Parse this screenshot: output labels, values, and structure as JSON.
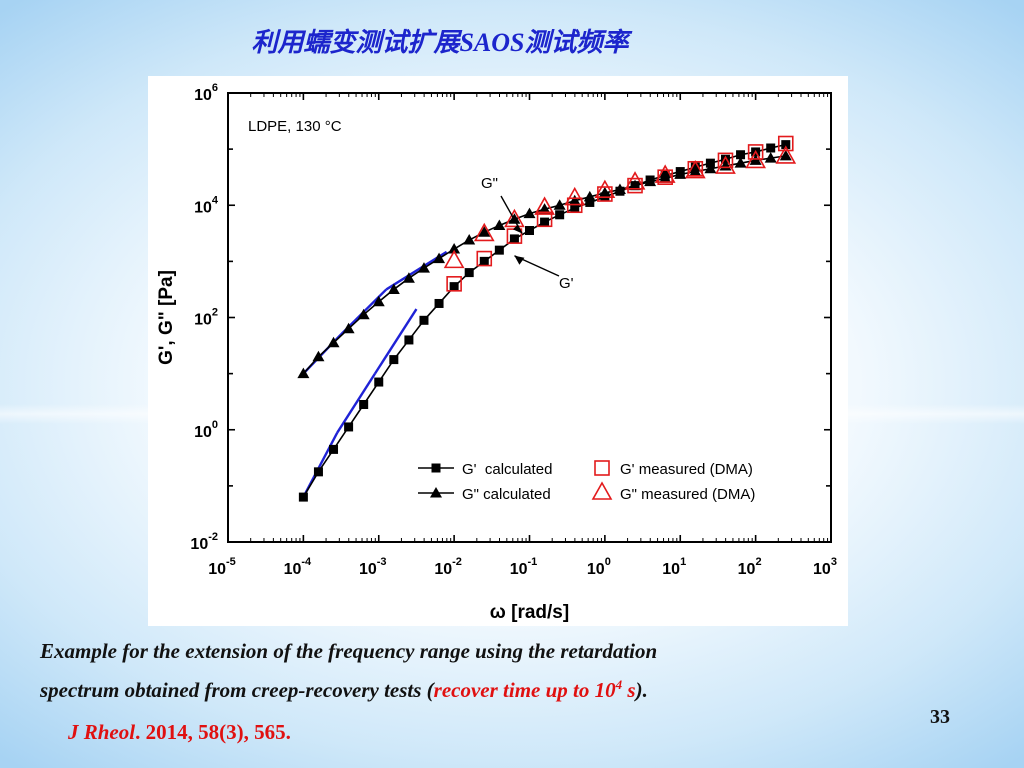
{
  "slide": {
    "title": "利用蠕变测试扩展SAOS测试频率",
    "page_number": "33"
  },
  "caption": {
    "line1": "Example for the extension of the frequency range using the retardation",
    "line2_pre": "spectrum obtained from creep-recovery tests (",
    "line2_red": "recover time up to 10",
    "line2_sup": "4",
    "line2_red_unit": " s",
    "line2_post": ")."
  },
  "reference": {
    "journal": "J Rheol",
    "rest": ". 2014, 58(3), 565."
  },
  "chart_data": {
    "type": "scatter",
    "xlabel": "ω [rad/s]",
    "ylabel": "G', G\" [Pa]",
    "xscale": "log",
    "yscale": "log",
    "xlim_exp": [
      -5,
      3
    ],
    "ylim_exp": [
      -2,
      6
    ],
    "x_tick_labels": [
      {
        "base": "10",
        "exp": "-5"
      },
      {
        "base": "10",
        "exp": "-4"
      },
      {
        "base": "10",
        "exp": "-3"
      },
      {
        "base": "10",
        "exp": "-2"
      },
      {
        "base": "10",
        "exp": "-1"
      },
      {
        "base": "10",
        "exp": "0"
      },
      {
        "base": "10",
        "exp": "1"
      },
      {
        "base": "10",
        "exp": "2"
      },
      {
        "base": "10",
        "exp": "3"
      }
    ],
    "y_tick_labels": [
      {
        "base": "10",
        "exp": "-2"
      },
      {
        "base": "10",
        "exp": "0"
      },
      {
        "base": "10",
        "exp": "2"
      },
      {
        "base": "10",
        "exp": "4"
      },
      {
        "base": "10",
        "exp": "6"
      }
    ],
    "annotations": [
      {
        "text": "LDPE, 130 °C"
      },
      {
        "text": "G\"",
        "points_to_log_x": -1.1,
        "points_to_log_y": 3.5
      },
      {
        "text": "G'",
        "points_to_log_x": -1.2,
        "points_to_log_y": 3.1
      }
    ],
    "legend_position": "bottom-right",
    "grid": false,
    "series": [
      {
        "name": "G'  calculated",
        "marker": "square-filled",
        "line": "black",
        "color": "#000000",
        "log_x": [
          -4.0,
          -3.8,
          -3.6,
          -3.4,
          -3.2,
          -3.0,
          -2.8,
          -2.6,
          -2.4,
          -2.2,
          -2.0,
          -1.8,
          -1.6,
          -1.4,
          -1.2,
          -1.0,
          -0.8,
          -0.6,
          -0.4,
          -0.2,
          0.0,
          0.2,
          0.4,
          0.6,
          0.8,
          1.0,
          1.2,
          1.4,
          1.6,
          1.8,
          2.0,
          2.2,
          2.4
        ],
        "log_y": [
          -1.2,
          -0.75,
          -0.35,
          0.05,
          0.45,
          0.85,
          1.25,
          1.6,
          1.95,
          2.25,
          2.55,
          2.8,
          3.0,
          3.2,
          3.4,
          3.55,
          3.7,
          3.83,
          3.95,
          4.05,
          4.15,
          4.25,
          4.35,
          4.45,
          4.53,
          4.6,
          4.68,
          4.75,
          4.82,
          4.9,
          4.95,
          5.02,
          5.08
        ]
      },
      {
        "name": "G\" calculated",
        "marker": "triangle-filled",
        "line": "black",
        "color": "#000000",
        "log_x": [
          -4.0,
          -3.8,
          -3.6,
          -3.4,
          -3.2,
          -3.0,
          -2.8,
          -2.6,
          -2.4,
          -2.2,
          -2.0,
          -1.8,
          -1.6,
          -1.4,
          -1.2,
          -1.0,
          -0.8,
          -0.6,
          -0.4,
          -0.2,
          0.0,
          0.2,
          0.4,
          0.6,
          0.8,
          1.0,
          1.2,
          1.4,
          1.6,
          1.8,
          2.0,
          2.2,
          2.4
        ],
        "log_y": [
          1.0,
          1.3,
          1.55,
          1.8,
          2.05,
          2.28,
          2.5,
          2.7,
          2.88,
          3.05,
          3.22,
          3.38,
          3.52,
          3.64,
          3.75,
          3.85,
          3.93,
          4.0,
          4.08,
          4.15,
          4.22,
          4.28,
          4.35,
          4.42,
          4.48,
          4.55,
          4.6,
          4.65,
          4.7,
          4.75,
          4.8,
          4.84,
          4.88
        ]
      },
      {
        "name": "G' measured (DMA)",
        "marker": "square-open",
        "line": "none",
        "color": "#e31a1c",
        "log_x": [
          -2.0,
          -1.6,
          -1.2,
          -0.8,
          -0.4,
          0.0,
          0.4,
          0.8,
          1.2,
          1.6,
          2.0,
          2.4
        ],
        "log_y": [
          2.6,
          3.05,
          3.45,
          3.75,
          4.0,
          4.2,
          4.35,
          4.5,
          4.65,
          4.8,
          4.95,
          5.1
        ]
      },
      {
        "name": "G\" measured (DMA)",
        "marker": "triangle-open",
        "line": "none",
        "color": "#e31a1c",
        "log_x": [
          -2.0,
          -1.6,
          -1.2,
          -0.8,
          -0.4,
          0.0,
          0.4,
          0.8,
          1.2,
          1.6,
          2.0,
          2.4
        ],
        "log_y": [
          3.0,
          3.48,
          3.73,
          3.95,
          4.12,
          4.25,
          4.4,
          4.52,
          4.6,
          4.68,
          4.78,
          4.86
        ]
      }
    ],
    "fit_lines": [
      {
        "color": "#1f22d6",
        "log_x": [
          -4.0,
          -3.5
        ],
        "log_y": [
          1.0,
          1.7
        ]
      },
      {
        "color": "#1f22d6",
        "log_x": [
          -3.5,
          -2.9
        ],
        "log_y": [
          1.7,
          2.5
        ]
      },
      {
        "color": "#1f22d6",
        "log_x": [
          -2.9,
          -2.1
        ],
        "log_y": [
          2.5,
          3.17
        ]
      },
      {
        "color": "#1f22d6",
        "log_x": [
          -4.0,
          -3.55
        ],
        "log_y": [
          -1.2,
          -0.05
        ]
      },
      {
        "color": "#1f22d6",
        "log_x": [
          -3.55,
          -3.05
        ],
        "log_y": [
          -0.05,
          1.0
        ]
      },
      {
        "color": "#1f22d6",
        "log_x": [
          -3.05,
          -2.5
        ],
        "log_y": [
          1.0,
          2.15
        ]
      }
    ]
  }
}
